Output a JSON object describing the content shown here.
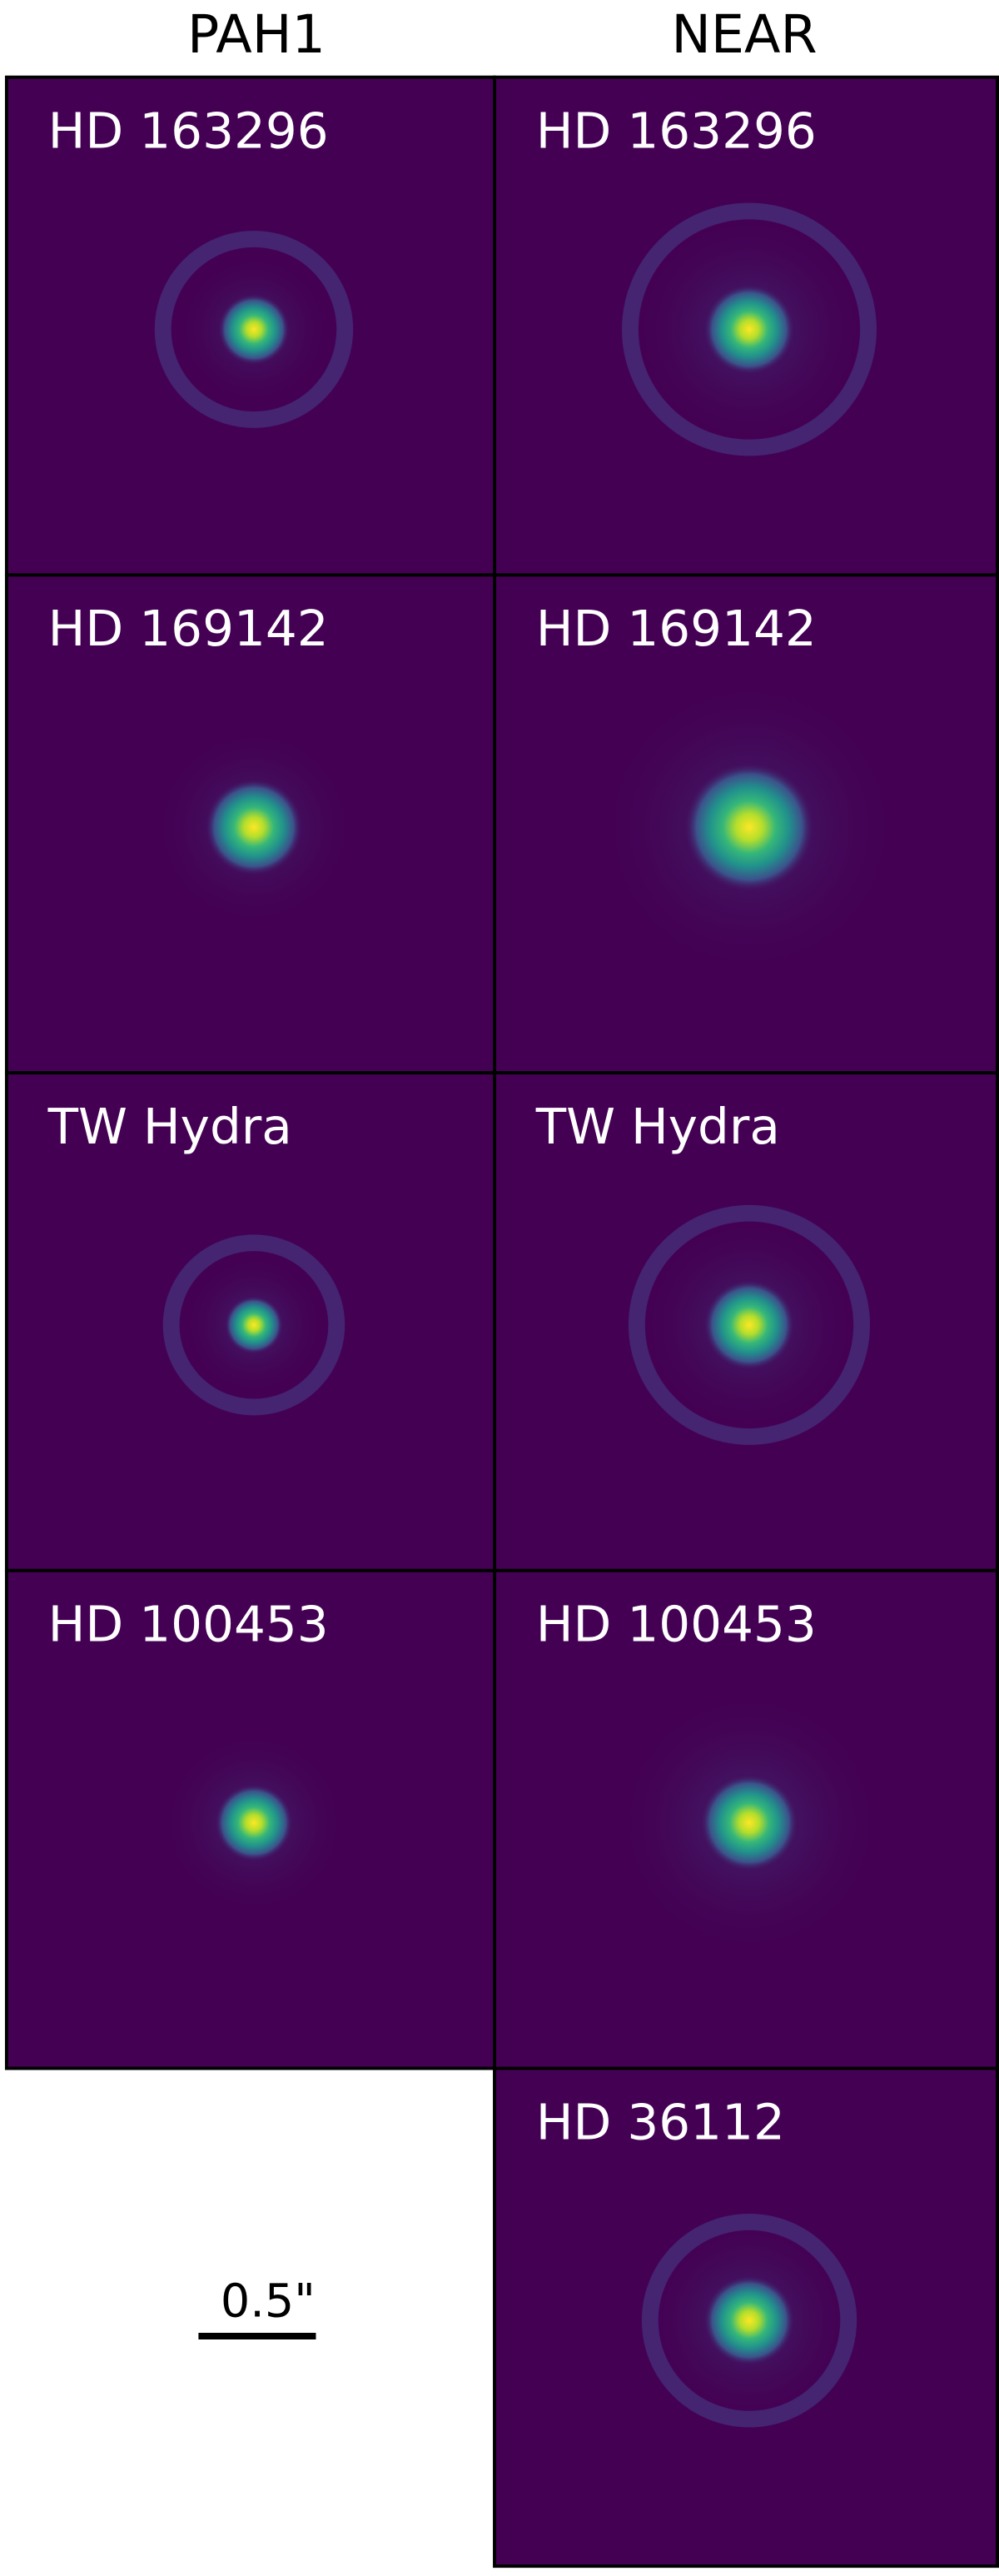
{
  "columns": [
    "PAH1",
    "NEAR"
  ],
  "panels": [
    {
      "column": 0,
      "row": 0,
      "label": "HD 163296"
    },
    {
      "column": 1,
      "row": 0,
      "label": "HD 163296"
    },
    {
      "column": 0,
      "row": 1,
      "label": "HD 169142"
    },
    {
      "column": 1,
      "row": 1,
      "label": "HD 169142"
    },
    {
      "column": 0,
      "row": 2,
      "label": "TW Hydra"
    },
    {
      "column": 1,
      "row": 2,
      "label": "TW Hydra"
    },
    {
      "column": 0,
      "row": 3,
      "label": "HD 100453"
    },
    {
      "column": 1,
      "row": 3,
      "label": "HD 100453"
    },
    {
      "column": 1,
      "row": 4,
      "label": "HD 36112"
    }
  ],
  "scale_bar": "0.5\""
}
